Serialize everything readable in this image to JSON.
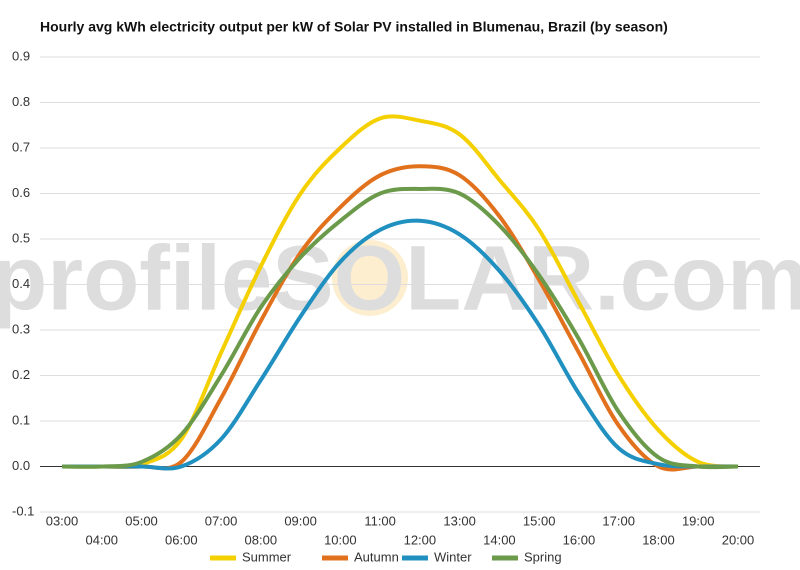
{
  "chart_data": {
    "type": "line",
    "title": "Hourly avg kWh electricity output per kW of Solar PV installed in Blumenau, Brazil (by season)",
    "watermark": "profileSOLAR.com",
    "categories": [
      "03:00",
      "04:00",
      "05:00",
      "06:00",
      "07:00",
      "08:00",
      "09:00",
      "10:00",
      "11:00",
      "12:00",
      "13:00",
      "14:00",
      "15:00",
      "16:00",
      "17:00",
      "18:00",
      "19:00",
      "20:00"
    ],
    "series": [
      {
        "name": "Summer",
        "color": "#f5d000",
        "values": [
          0,
          0,
          0.005,
          0.06,
          0.25,
          0.44,
          0.6,
          0.7,
          0.765,
          0.76,
          0.73,
          0.63,
          0.52,
          0.36,
          0.2,
          0.08,
          0.01,
          0
        ]
      },
      {
        "name": "Autumn",
        "color": "#e2711d",
        "values": [
          0,
          0,
          0,
          0.01,
          0.15,
          0.32,
          0.47,
          0.57,
          0.64,
          0.66,
          0.64,
          0.55,
          0.41,
          0.25,
          0.09,
          0,
          0,
          0
        ]
      },
      {
        "name": "Winter",
        "color": "#2090c0",
        "values": [
          0,
          0,
          0,
          0,
          0.06,
          0.19,
          0.33,
          0.45,
          0.52,
          0.54,
          0.51,
          0.43,
          0.31,
          0.16,
          0.04,
          0.005,
          0,
          0
        ]
      },
      {
        "name": "Spring",
        "color": "#6a9a4a",
        "values": [
          0,
          0,
          0.01,
          0.07,
          0.2,
          0.35,
          0.46,
          0.54,
          0.6,
          0.61,
          0.6,
          0.53,
          0.42,
          0.28,
          0.12,
          0.02,
          0,
          0
        ]
      }
    ],
    "ylim": [
      -0.1,
      0.9
    ],
    "yticks": [
      -0.1,
      {
        "value": 0,
        "label": "0.0"
      },
      0.1,
      0.2,
      0.3,
      0.4,
      0.5,
      0.6,
      0.7,
      0.8,
      0.9
    ],
    "grid": true,
    "legend": "bottom"
  }
}
